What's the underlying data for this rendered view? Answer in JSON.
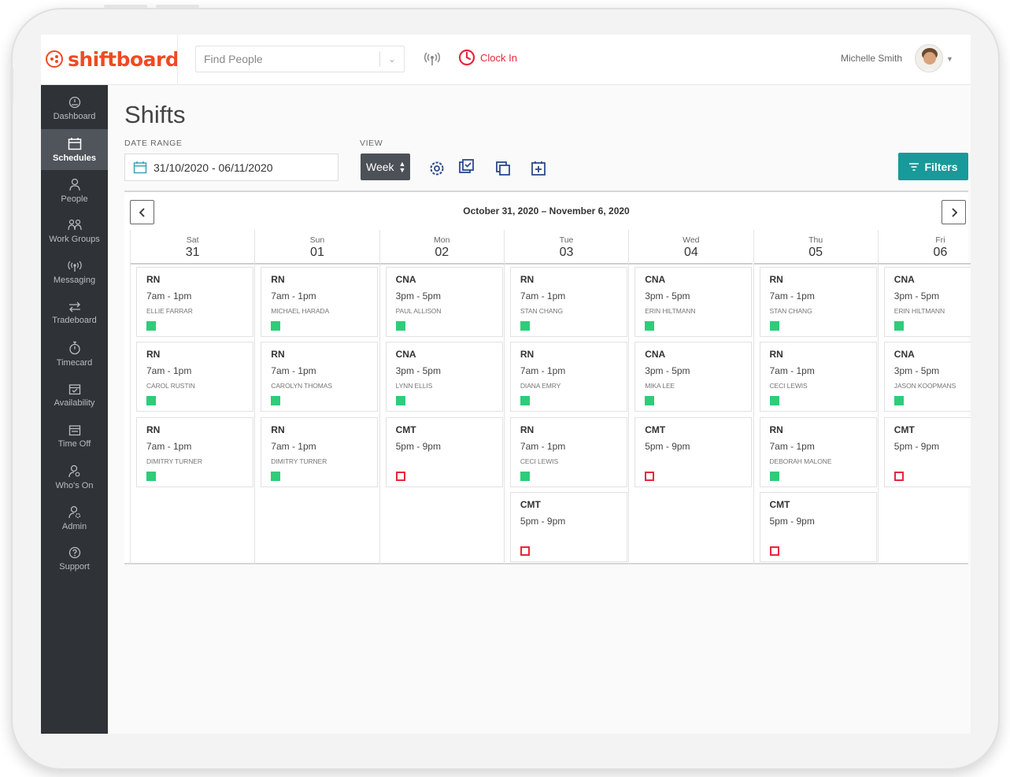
{
  "app": {
    "brand": "shiftboard",
    "search_placeholder": "Find People",
    "clock_in_label": "Clock In",
    "user_name": "Michelle Smith"
  },
  "sidebar": {
    "items": [
      {
        "label": "Dashboard",
        "icon": "dashboard-icon",
        "active": false
      },
      {
        "label": "Schedules",
        "icon": "calendar-icon",
        "active": true
      },
      {
        "label": "People",
        "icon": "person-icon",
        "active": false
      },
      {
        "label": "Work Groups",
        "icon": "group-icon",
        "active": false
      },
      {
        "label": "Messaging",
        "icon": "broadcast-icon",
        "active": false
      },
      {
        "label": "Tradeboard",
        "icon": "swap-icon",
        "active": false
      },
      {
        "label": "Timecard",
        "icon": "stopwatch-icon",
        "active": false
      },
      {
        "label": "Availability",
        "icon": "calendar-check-icon",
        "active": false
      },
      {
        "label": "Time Off",
        "icon": "calendar-off-icon",
        "active": false
      },
      {
        "label": "Who's On",
        "icon": "person-search-icon",
        "active": false
      },
      {
        "label": "Admin",
        "icon": "admin-icon",
        "active": false
      },
      {
        "label": "Support",
        "icon": "help-icon",
        "active": false
      }
    ]
  },
  "page": {
    "title": "Shifts",
    "date_range_label": "DATE RANGE",
    "date_range_value": "31/10/2020 - 06/11/2020",
    "view_label": "VIEW",
    "view_value": "Week",
    "filters_label": "Filters",
    "toolbar_icons": [
      "settings-icon",
      "copy-schedule-icon",
      "duplicate-icon",
      "add-shift-icon"
    ]
  },
  "calendar": {
    "range_title": "October 31, 2020 – November 6, 2020",
    "colors": {
      "filled": "#2fcc7a",
      "open": "#e8253d"
    },
    "days": [
      {
        "name": "Sat",
        "num": "31",
        "shifts": [
          {
            "role": "RN",
            "time": "7am - 1pm",
            "person": "ELLIE FARRAR",
            "status": "filled"
          },
          {
            "role": "RN",
            "time": "7am - 1pm",
            "person": "CAROL RUSTIN",
            "status": "filled"
          },
          {
            "role": "RN",
            "time": "7am - 1pm",
            "person": "DIMITRY TURNER",
            "status": "filled"
          }
        ]
      },
      {
        "name": "Sun",
        "num": "01",
        "shifts": [
          {
            "role": "RN",
            "time": "7am - 1pm",
            "person": "MICHAEL HARADA",
            "status": "filled"
          },
          {
            "role": "RN",
            "time": "7am - 1pm",
            "person": "CAROLYN THOMAS",
            "status": "filled"
          },
          {
            "role": "RN",
            "time": "7am - 1pm",
            "person": "DIMITRY TURNER",
            "status": "filled"
          }
        ]
      },
      {
        "name": "Mon",
        "num": "02",
        "shifts": [
          {
            "role": "CNA",
            "time": "3pm - 5pm",
            "person": "PAUL ALLISON",
            "status": "filled"
          },
          {
            "role": "CNA",
            "time": "3pm - 5pm",
            "person": "LYNN ELLIS",
            "status": "filled"
          },
          {
            "role": "CMT",
            "time": "5pm - 9pm",
            "person": "",
            "status": "open"
          }
        ]
      },
      {
        "name": "Tue",
        "num": "03",
        "shifts": [
          {
            "role": "RN",
            "time": "7am - 1pm",
            "person": "STAN CHANG",
            "status": "filled"
          },
          {
            "role": "RN",
            "time": "7am - 1pm",
            "person": "DIANA EMRY",
            "status": "filled"
          },
          {
            "role": "RN",
            "time": "7am - 1pm",
            "person": "CECI LEWIS",
            "status": "filled"
          },
          {
            "role": "CMT",
            "time": "5pm - 9pm",
            "person": "",
            "status": "open"
          }
        ]
      },
      {
        "name": "Wed",
        "num": "04",
        "shifts": [
          {
            "role": "CNA",
            "time": "3pm - 5pm",
            "person": "ERIN HILTMANN",
            "status": "filled"
          },
          {
            "role": "CNA",
            "time": "3pm - 5pm",
            "person": "MIKA LEE",
            "status": "filled"
          },
          {
            "role": "CMT",
            "time": "5pm - 9pm",
            "person": "",
            "status": "open"
          }
        ]
      },
      {
        "name": "Thu",
        "num": "05",
        "shifts": [
          {
            "role": "RN",
            "time": "7am - 1pm",
            "person": "STAN CHANG",
            "status": "filled"
          },
          {
            "role": "RN",
            "time": "7am - 1pm",
            "person": "CECI LEWIS",
            "status": "filled"
          },
          {
            "role": "RN",
            "time": "7am - 1pm",
            "person": "DEBORAH MALONE",
            "status": "filled"
          },
          {
            "role": "CMT",
            "time": "5pm - 9pm",
            "person": "",
            "status": "open"
          }
        ]
      },
      {
        "name": "Fri",
        "num": "06",
        "shifts": [
          {
            "role": "CNA",
            "time": "3pm - 5pm",
            "person": "ERIN HILTMANN",
            "status": "filled"
          },
          {
            "role": "CNA",
            "time": "3pm - 5pm",
            "person": "JASON KOOPMANS",
            "status": "filled"
          },
          {
            "role": "CMT",
            "time": "5pm - 9pm",
            "person": "",
            "status": "open"
          }
        ]
      }
    ]
  }
}
